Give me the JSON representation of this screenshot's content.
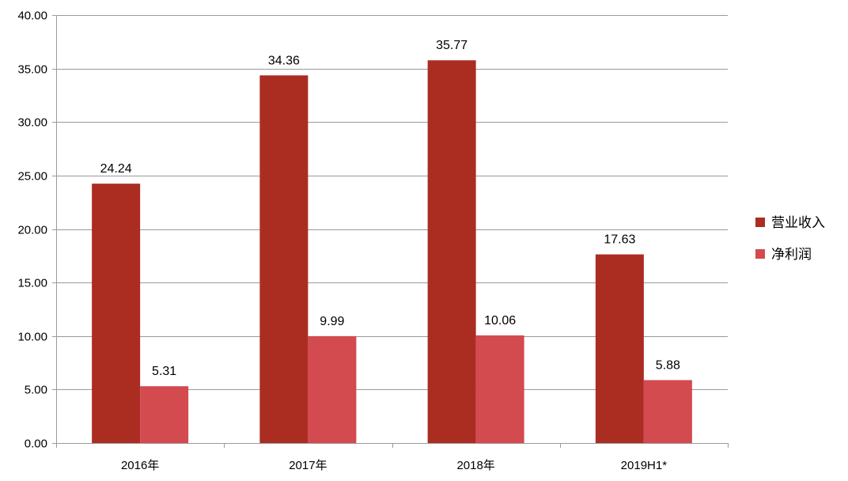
{
  "chart_data": {
    "type": "bar",
    "categories": [
      "2016年",
      "2017年",
      "2018年",
      "2019H1*"
    ],
    "series": [
      {
        "name": "营业收入",
        "values": [
          24.24,
          34.36,
          35.77,
          17.63
        ],
        "labels": [
          "24.24",
          "34.36",
          "35.77",
          "17.63"
        ],
        "color": "#ab2d22"
      },
      {
        "name": "净利润",
        "values": [
          5.31,
          9.99,
          10.06,
          5.88
        ],
        "labels": [
          "5.31",
          "9.99",
          "10.06",
          "5.88"
        ],
        "color": "#d34a4f"
      }
    ],
    "ylim": [
      0,
      40
    ],
    "yticks": [
      "0.00",
      "5.00",
      "10.00",
      "15.00",
      "20.00",
      "25.00",
      "30.00",
      "35.00",
      "40.00"
    ],
    "ytick_values": [
      0,
      5,
      10,
      15,
      20,
      25,
      30,
      35,
      40
    ],
    "grid": true,
    "legend_position": "right"
  }
}
